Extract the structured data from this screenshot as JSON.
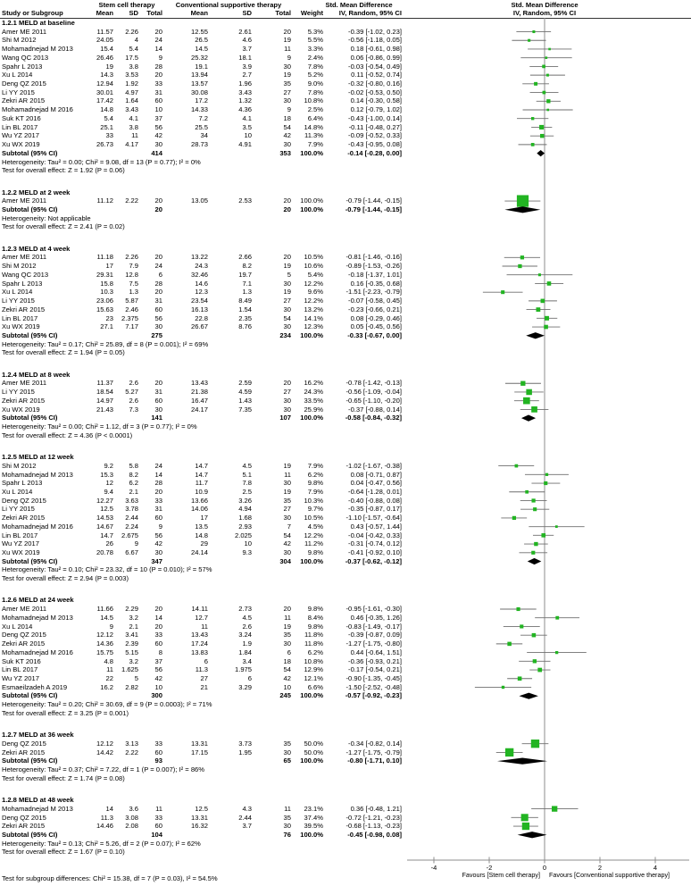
{
  "headers": {
    "group1": "Stem cell therapy",
    "group2": "Conventional supportive therapy",
    "effect": "Std. Mean Difference",
    "model": "IV, Random, 95% CI",
    "study": "Study or Subgroup",
    "mean": "Mean",
    "sd": "SD",
    "total": "Total",
    "weight": "Weight"
  },
  "labels": {
    "subtotal": "Subtotal (95% CI)"
  },
  "footer": {
    "subgroup_test": "Test for subgroup differences: Chi² = 15.38, df = 7 (P = 0.03), I² = 54.5%"
  },
  "colors": {
    "marker": "#22b422",
    "diamond": "#000000",
    "ci_line": "#6f6f6f",
    "axis": "#8c8c8c",
    "rule": "#333333"
  },
  "chart_data": {
    "type": "forest",
    "effect_measure": "Std. Mean Difference",
    "model": "IV, Random, 95% CI",
    "axis": {
      "ticks": [
        -4,
        -2,
        0,
        2,
        4
      ],
      "xlim": [
        -5,
        5.2
      ],
      "favours_left": "Favours [Stem cell therapy]",
      "favours_right": "Favours [Conventional supportive therapy]"
    },
    "sections": [
      {
        "label": "1.2.1 MELD at baseline",
        "studies": [
          [
            "Amer ME 2011",
            "11.57",
            "2.26",
            "20",
            "12.55",
            "2.61",
            "20",
            "5.3%",
            "-0.39 [-1.02, 0.23]"
          ],
          [
            "Shi M 2012",
            "24.05",
            "4",
            "24",
            "26.5",
            "4.6",
            "19",
            "5.5%",
            "-0.56 [-1.18, 0.05]"
          ],
          [
            "Mohamadnejad M 2013",
            "15.4",
            "5.4",
            "14",
            "14.5",
            "3.7",
            "11",
            "3.3%",
            "0.18 [-0.61, 0.98]"
          ],
          [
            "Wang QC 2013",
            "26.46",
            "17.5",
            "9",
            "25.32",
            "18.1",
            "9",
            "2.4%",
            "0.06 [-0.86, 0.99]"
          ],
          [
            "Spahr L 2013",
            "19",
            "3.8",
            "28",
            "19.1",
            "3.9",
            "30",
            "7.8%",
            "-0.03 [-0.54, 0.49]"
          ],
          [
            "Xu L 2014",
            "14.3",
            "3.53",
            "20",
            "13.94",
            "2.7",
            "19",
            "5.2%",
            "0.11 [-0.52, 0.74]"
          ],
          [
            "Deng QZ 2015",
            "12.94",
            "1.92",
            "33",
            "13.57",
            "1.96",
            "35",
            "9.0%",
            "-0.32 [-0.80, 0.16]"
          ],
          [
            "Li YY 2015",
            "30.01",
            "4.97",
            "31",
            "30.08",
            "3.43",
            "27",
            "7.8%",
            "-0.02 [-0.53, 0.50]"
          ],
          [
            "Zekri AR 2015",
            "17.42",
            "1.64",
            "60",
            "17.2",
            "1.32",
            "30",
            "10.8%",
            "0.14 [-0.30, 0.58]"
          ],
          [
            "Mohamadnejad M 2016",
            "14.8",
            "3.43",
            "10",
            "14.33",
            "4.36",
            "9",
            "2.5%",
            "0.12 [-0.79, 1.02]"
          ],
          [
            "Suk KT 2016",
            "5.4",
            "4.1",
            "37",
            "7.2",
            "4.1",
            "18",
            "6.4%",
            "-0.43 [-1.00, 0.14]"
          ],
          [
            "Lin BL 2017",
            "25.1",
            "3.8",
            "56",
            "25.5",
            "3.5",
            "54",
            "14.8%",
            "-0.11 [-0.48, 0.27]"
          ],
          [
            "Wu YZ 2017",
            "33",
            "11",
            "42",
            "34",
            "10",
            "42",
            "11.3%",
            "-0.09 [-0.52, 0.33]"
          ],
          [
            "Xu WX 2019",
            "26.73",
            "4.17",
            "30",
            "28.73",
            "4.91",
            "30",
            "7.9%",
            "-0.43 [-0.95, 0.08]"
          ]
        ],
        "subtotal": {
          "n1": "414",
          "n2": "353",
          "weight": "100.0%",
          "ci": "-0.14 [-0.28, 0.00]"
        },
        "heterogeneity": "Heterogeneity: Tau² = 0.00; Chi² = 9.08, df = 13 (P = 0.77); I² = 0%",
        "overall_test": "Test for overall effect: Z = 1.92 (P = 0.06)"
      },
      {
        "label": "1.2.2 MELD at 2 week",
        "studies": [
          [
            "Amer ME 2011",
            "11.12",
            "2.22",
            "20",
            "13.05",
            "2.53",
            "20",
            "100.0%",
            "-0.79 [-1.44, -0.15]"
          ]
        ],
        "subtotal": {
          "n1": "20",
          "n2": "20",
          "weight": "100.0%",
          "ci": "-0.79 [-1.44, -0.15]"
        },
        "heterogeneity": "Heterogeneity: Not applicable",
        "overall_test": "Test for overall effect: Z = 2.41 (P = 0.02)"
      },
      {
        "label": "1.2.3 MELD at 4 week",
        "studies": [
          [
            "Amer ME 2011",
            "11.18",
            "2.26",
            "20",
            "13.22",
            "2.66",
            "20",
            "10.5%",
            "-0.81 [-1.46, -0.16]"
          ],
          [
            "Shi M 2012",
            "17",
            "7.9",
            "24",
            "24.3",
            "8.2",
            "19",
            "10.6%",
            "-0.89 [-1.53, -0.26]"
          ],
          [
            "Wang QC 2013",
            "29.31",
            "12.8",
            "6",
            "32.46",
            "19.7",
            "5",
            "5.4%",
            "-0.18 [-1.37, 1.01]"
          ],
          [
            "Spahr L 2013",
            "15.8",
            "7.5",
            "28",
            "14.6",
            "7.1",
            "30",
            "12.2%",
            "0.16 [-0.35, 0.68]"
          ],
          [
            "Xu L 2014",
            "10.3",
            "1.3",
            "20",
            "12.3",
            "1.3",
            "19",
            "9.6%",
            "-1.51 [-2.23, -0.79]"
          ],
          [
            "Li YY 2015",
            "23.06",
            "5.87",
            "31",
            "23.54",
            "8.49",
            "27",
            "12.2%",
            "-0.07 [-0.58, 0.45]"
          ],
          [
            "Zekri AR 2015",
            "15.63",
            "2.46",
            "60",
            "16.13",
            "1.54",
            "30",
            "13.2%",
            "-0.23 [-0.66, 0.21]"
          ],
          [
            "Lin BL 2017",
            "23",
            "2.375",
            "56",
            "22.8",
            "2.35",
            "54",
            "14.1%",
            "0.08 [-0.29, 0.46]"
          ],
          [
            "Xu WX 2019",
            "27.1",
            "7.17",
            "30",
            "26.67",
            "8.76",
            "30",
            "12.3%",
            "0.05 [-0.45, 0.56]"
          ]
        ],
        "subtotal": {
          "n1": "275",
          "n2": "234",
          "weight": "100.0%",
          "ci": "-0.33 [-0.67, 0.00]"
        },
        "heterogeneity": "Heterogeneity: Tau² = 0.17; Chi² = 25.89, df = 8 (P = 0.001); I² = 69%",
        "overall_test": "Test for overall effect: Z = 1.94 (P = 0.05)"
      },
      {
        "label": "1.2.4 MELD at 8 week",
        "studies": [
          [
            "Amer ME 2011",
            "11.37",
            "2.6",
            "20",
            "13.43",
            "2.59",
            "20",
            "16.2%",
            "-0.78 [-1.42, -0.13]"
          ],
          [
            "Li YY 2015",
            "18.54",
            "5.27",
            "31",
            "21.38",
            "4.59",
            "27",
            "24.3%",
            "-0.56 [-1.09, -0.04]"
          ],
          [
            "Zekri AR 2015",
            "14.97",
            "2.6",
            "60",
            "16.47",
            "1.43",
            "30",
            "33.5%",
            "-0.65 [-1.10, -0.20]"
          ],
          [
            "Xu WX 2019",
            "21.43",
            "7.3",
            "30",
            "24.17",
            "7.35",
            "30",
            "25.9%",
            "-0.37 [-0.88, 0.14]"
          ]
        ],
        "subtotal": {
          "n1": "141",
          "n2": "107",
          "weight": "100.0%",
          "ci": "-0.58 [-0.84, -0.32]"
        },
        "heterogeneity": "Heterogeneity: Tau² = 0.00; Chi² = 1.12, df = 3 (P = 0.77); I² = 0%",
        "overall_test": "Test for overall effect: Z = 4.36 (P < 0.0001)"
      },
      {
        "label": "1.2.5 MELD at 12 week",
        "studies": [
          [
            "Shi M 2012",
            "9.2",
            "5.8",
            "24",
            "14.7",
            "4.5",
            "19",
            "7.9%",
            "-1.02 [-1.67, -0.38]"
          ],
          [
            "Mohamadnejad M 2013",
            "15.3",
            "8.2",
            "14",
            "14.7",
            "5.1",
            "11",
            "6.2%",
            "0.08 [-0.71, 0.87]"
          ],
          [
            "Spahr L 2013",
            "12",
            "6.2",
            "28",
            "11.7",
            "7.8",
            "30",
            "9.8%",
            "0.04 [-0.47, 0.56]"
          ],
          [
            "Xu L 2014",
            "9.4",
            "2.1",
            "20",
            "10.9",
            "2.5",
            "19",
            "7.9%",
            "-0.64 [-1.28, 0.01]"
          ],
          [
            "Deng QZ 2015",
            "12.27",
            "3.63",
            "33",
            "13.66",
            "3.26",
            "35",
            "10.3%",
            "-0.40 [-0.88, 0.08]"
          ],
          [
            "Li YY 2015",
            "12.5",
            "3.78",
            "31",
            "14.06",
            "4.94",
            "27",
            "9.7%",
            "-0.35 [-0.87, 0.17]"
          ],
          [
            "Zekri AR 2015",
            "14.53",
            "2.44",
            "60",
            "17",
            "1.68",
            "30",
            "10.5%",
            "-1.10 [-1.57, -0.64]"
          ],
          [
            "Mohamadnejad M 2016",
            "14.67",
            "2.24",
            "9",
            "13.5",
            "2.93",
            "7",
            "4.5%",
            "0.43 [-0.57, 1.44]"
          ],
          [
            "Lin BL 2017",
            "14.7",
            "2.675",
            "56",
            "14.8",
            "2.025",
            "54",
            "12.2%",
            "-0.04 [-0.42, 0.33]"
          ],
          [
            "Wu YZ 2017",
            "26",
            "9",
            "42",
            "29",
            "10",
            "42",
            "11.2%",
            "-0.31 [-0.74, 0.12]"
          ],
          [
            "Xu WX 2019",
            "20.78",
            "6.67",
            "30",
            "24.14",
            "9.3",
            "30",
            "9.8%",
            "-0.41 [-0.92, 0.10]"
          ]
        ],
        "subtotal": {
          "n1": "347",
          "n2": "304",
          "weight": "100.0%",
          "ci": "-0.37 [-0.62, -0.12]"
        },
        "heterogeneity": "Heterogeneity: Tau² = 0.10; Chi² = 23.32, df = 10 (P = 0.010); I² = 57%",
        "overall_test": "Test for overall effect: Z = 2.94 (P = 0.003)"
      },
      {
        "label": "1.2.6 MELD at 24 week",
        "studies": [
          [
            "Amer ME 2011",
            "11.66",
            "2.29",
            "20",
            "14.11",
            "2.73",
            "20",
            "9.8%",
            "-0.95 [-1.61, -0.30]"
          ],
          [
            "Mohamadnejad M 2013",
            "14.5",
            "3.2",
            "14",
            "12.7",
            "4.5",
            "11",
            "8.4%",
            "0.46 [-0.35, 1.26]"
          ],
          [
            "Xu L 2014",
            "9",
            "2.1",
            "20",
            "11",
            "2.6",
            "19",
            "9.8%",
            "-0.83 [-1.49, -0.17]"
          ],
          [
            "Deng QZ 2015",
            "12.12",
            "3.41",
            "33",
            "13.43",
            "3.24",
            "35",
            "11.8%",
            "-0.39 [-0.87, 0.09]"
          ],
          [
            "Zekri AR 2015",
            "14.36",
            "2.39",
            "60",
            "17.24",
            "1.9",
            "30",
            "11.8%",
            "-1.27 [-1.75, -0.80]"
          ],
          [
            "Mohamadnejad M 2016",
            "15.75",
            "5.15",
            "8",
            "13.83",
            "1.84",
            "6",
            "6.2%",
            "0.44 [-0.64, 1.51]"
          ],
          [
            "Suk KT 2016",
            "4.8",
            "3.2",
            "37",
            "6",
            "3.4",
            "18",
            "10.8%",
            "-0.36 [-0.93, 0.21]"
          ],
          [
            "Lin BL 2017",
            "11",
            "1.625",
            "56",
            "11.3",
            "1.975",
            "54",
            "12.9%",
            "-0.17 [-0.54, 0.21]"
          ],
          [
            "Wu YZ 2017",
            "22",
            "5",
            "42",
            "27",
            "6",
            "42",
            "12.1%",
            "-0.90 [-1.35, -0.45]"
          ],
          [
            "Esmaeilzadeh A 2019",
            "16.2",
            "2.82",
            "10",
            "21",
            "3.29",
            "10",
            "6.6%",
            "-1.50 [-2.52, -0.48]"
          ]
        ],
        "subtotal": {
          "n1": "300",
          "n2": "245",
          "weight": "100.0%",
          "ci": "-0.57 [-0.92, -0.23]"
        },
        "heterogeneity": "Heterogeneity: Tau² = 0.20; Chi² = 30.69, df = 9 (P = 0.0003); I² = 71%",
        "overall_test": "Test for overall effect: Z = 3.25 (P = 0.001)"
      },
      {
        "label": "1.2.7 MELD at 36 week",
        "studies": [
          [
            "Deng QZ 2015",
            "12.12",
            "3.13",
            "33",
            "13.31",
            "3.73",
            "35",
            "50.0%",
            "-0.34 [-0.82, 0.14]"
          ],
          [
            "Zekri AR 2015",
            "14.42",
            "2.22",
            "60",
            "17.15",
            "1.95",
            "30",
            "50.0%",
            "-1.27 [-1.75, -0.79]"
          ]
        ],
        "subtotal": {
          "n1": "93",
          "n2": "65",
          "weight": "100.0%",
          "ci": "-0.80 [-1.71, 0.10]"
        },
        "heterogeneity": "Heterogeneity: Tau² = 0.37; Chi² = 7.22, df = 1 (P = 0.007); I² = 86%",
        "overall_test": "Test for overall effect: Z = 1.74 (P = 0.08)"
      },
      {
        "label": "1.2.8 MELD at 48 week",
        "studies": [
          [
            "Mohamadnejad M 2013",
            "14",
            "3.6",
            "11",
            "12.5",
            "4.3",
            "11",
            "23.1%",
            "0.36 [-0.48, 1.21]"
          ],
          [
            "Deng QZ 2015",
            "11.3",
            "3.08",
            "33",
            "13.31",
            "2.44",
            "35",
            "37.4%",
            "-0.72 [-1.21, -0.23]"
          ],
          [
            "Zekri AR 2015",
            "14.46",
            "2.08",
            "60",
            "16.32",
            "3.7",
            "30",
            "39.5%",
            "-0.68 [-1.13, -0.23]"
          ]
        ],
        "subtotal": {
          "n1": "104",
          "n2": "76",
          "weight": "100.0%",
          "ci": "-0.45 [-0.98, 0.08]"
        },
        "heterogeneity": "Heterogeneity: Tau² = 0.13; Chi² = 5.26, df = 2 (P = 0.07); I² = 62%",
        "overall_test": "Test for overall effect: Z = 1.67 (P = 0.10)"
      }
    ]
  }
}
